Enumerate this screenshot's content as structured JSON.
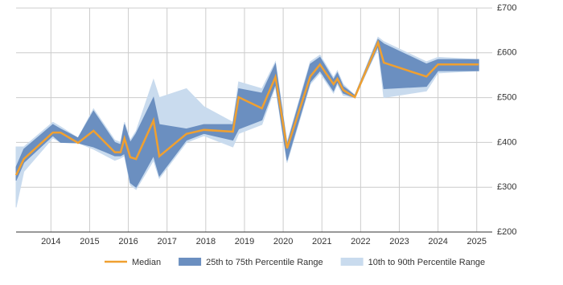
{
  "chart_data": {
    "type": "range-line",
    "x": [
      2013.1,
      2013.3,
      2014.05,
      2014.25,
      2014.7,
      2015.1,
      2015.65,
      2015.8,
      2015.9,
      2016.05,
      2016.2,
      2016.65,
      2016.8,
      2017.5,
      2017.95,
      2018.7,
      2018.85,
      2019.45,
      2019.8,
      2020.1,
      2020.7,
      2020.95,
      2021.3,
      2021.4,
      2021.55,
      2021.85,
      2022.45,
      2022.6,
      2023.7,
      2024.0,
      2025.05
    ],
    "series": [
      {
        "name": "10th to 90th Percentile Range",
        "color": "#c9dbee",
        "low": [
          255,
          335,
          410,
          400,
          399,
          385,
          360,
          365,
          370,
          305,
          295,
          360,
          320,
          400,
          415,
          390,
          420,
          440,
          525,
          355,
          530,
          555,
          510,
          530,
          505,
          500,
          610,
          500,
          515,
          555,
          560
        ],
        "high": [
          390,
          390,
          445,
          435,
          410,
          475,
          405,
          400,
          445,
          405,
          425,
          540,
          500,
          520,
          480,
          445,
          535,
          520,
          580,
          400,
          580,
          595,
          545,
          560,
          530,
          505,
          635,
          625,
          580,
          590,
          585
        ]
      },
      {
        "name": "25th to 75th Percentile Range",
        "color": "#6b8fc0",
        "low": [
          315,
          355,
          415,
          400,
          399,
          390,
          370,
          370,
          375,
          310,
          300,
          370,
          325,
          405,
          420,
          405,
          430,
          450,
          530,
          360,
          535,
          560,
          515,
          535,
          510,
          500,
          615,
          520,
          525,
          560,
          560
        ],
        "high": [
          345,
          385,
          440,
          430,
          410,
          470,
          400,
          395,
          440,
          400,
          420,
          500,
          440,
          430,
          440,
          440,
          520,
          510,
          575,
          395,
          575,
          590,
          540,
          555,
          525,
          505,
          630,
          620,
          575,
          585,
          585
        ]
      },
      {
        "name": "Median",
        "color": "#f0a030",
        "values": [
          327,
          363,
          422,
          422,
          399,
          426,
          378,
          378,
          409,
          367,
          363,
          449,
          369,
          419,
          428,
          424,
          501,
          476,
          546,
          387,
          547,
          574,
          530,
          542,
          517,
          501,
          623,
          578,
          547,
          574,
          574
        ]
      }
    ],
    "xlim": [
      2013.1,
      2025.4
    ],
    "xticks": [
      2014,
      2015,
      2016,
      2017,
      2018,
      2019,
      2020,
      2021,
      2022,
      2023,
      2024,
      2025
    ],
    "ylim": [
      200,
      700
    ],
    "yticks": [
      {
        "value": 200,
        "label": "£200"
      },
      {
        "value": 300,
        "label": "£300"
      },
      {
        "value": 400,
        "label": "£400"
      },
      {
        "value": 500,
        "label": "£500"
      },
      {
        "value": 600,
        "label": "£600"
      },
      {
        "value": 700,
        "label": "£700"
      }
    ],
    "grid": true
  }
}
